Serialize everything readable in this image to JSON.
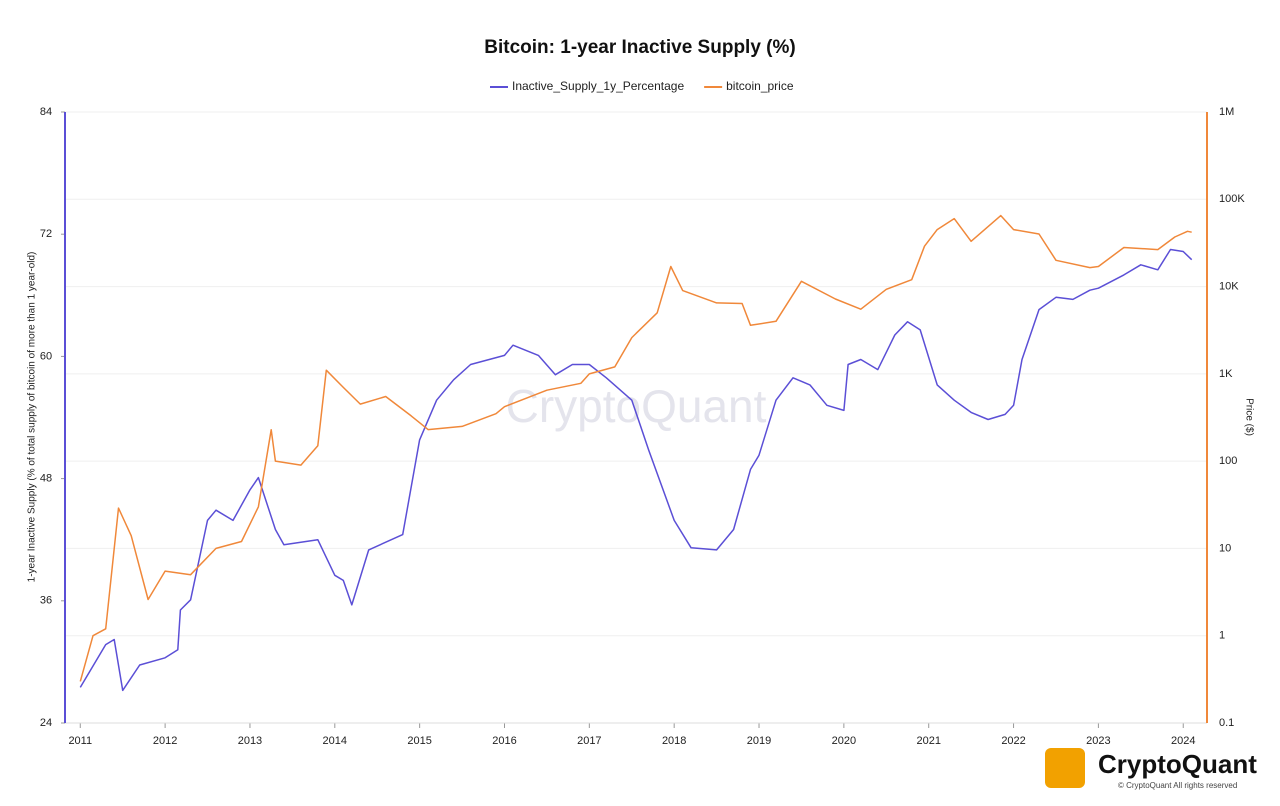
{
  "chart_data": {
    "type": "line",
    "title": "Bitcoin: 1-year Inactive Supply (%)",
    "ylabel": "1-year Inactive Supply (% of total supply of bitcoin of more than 1 year-old)",
    "y2label": "Price ($)",
    "watermark": "CryptoQuant",
    "footer": "CryptoQuant",
    "copyright": "© CryptoQuant All rights reserved",
    "xlim": [
      2010.82,
      2024.28
    ],
    "xticks": [
      2011,
      2012,
      2013,
      2014,
      2015,
      2016,
      2017,
      2018,
      2019,
      2020,
      2021,
      2022,
      2023,
      2024
    ],
    "ylim": [
      24,
      84
    ],
    "yticks": [
      24,
      36,
      48,
      60,
      72,
      84
    ],
    "y2lim": [
      0.1,
      1000000
    ],
    "y2log": true,
    "y2ticks": [
      0.1,
      1,
      10,
      100,
      {
        "value": 1000,
        "label": "1K"
      },
      {
        "value": 10000,
        "label": "10K"
      },
      {
        "value": 100000,
        "label": "100K"
      },
      {
        "value": 1000000,
        "label": "1M"
      }
    ],
    "grid": true,
    "legend": "top",
    "series": [
      {
        "name": "Inactive_Supply_1y_Percentage",
        "color": "#5b4fd6",
        "axis": "y",
        "x": [
          2011.0,
          2011.3,
          2011.4,
          2011.5,
          2011.7,
          2012.0,
          2012.15,
          2012.18,
          2012.3,
          2012.5,
          2012.6,
          2012.8,
          2013.0,
          2013.1,
          2013.3,
          2013.4,
          2013.8,
          2014.0,
          2014.1,
          2014.2,
          2014.4,
          2014.8,
          2015.0,
          2015.2,
          2015.4,
          2015.6,
          2016.0,
          2016.1,
          2016.4,
          2016.6,
          2016.8,
          2017.0,
          2017.2,
          2017.5,
          2017.7,
          2018.0,
          2018.2,
          2018.5,
          2018.7,
          2018.9,
          2019.0,
          2019.2,
          2019.4,
          2019.6,
          2019.8,
          2020.0,
          2020.05,
          2020.2,
          2020.4,
          2020.6,
          2020.75,
          2020.9,
          2021.1,
          2021.3,
          2021.5,
          2021.7,
          2021.9,
          2022.0,
          2022.1,
          2022.3,
          2022.5,
          2022.7,
          2022.9,
          2023.0,
          2023.3,
          2023.5,
          2023.7,
          2023.85,
          2024.0,
          2024.1
        ],
        "values": [
          27.5,
          31.7,
          32.2,
          27.2,
          29.7,
          30.4,
          31.2,
          35.1,
          36.1,
          43.9,
          44.9,
          43.9,
          46.9,
          48.1,
          43.0,
          41.5,
          42.0,
          38.5,
          38.0,
          35.6,
          41.0,
          42.5,
          51.8,
          55.7,
          57.7,
          59.2,
          60.1,
          61.1,
          60.1,
          58.2,
          59.2,
          59.2,
          57.9,
          55.7,
          50.8,
          43.9,
          41.2,
          41.0,
          43.0,
          48.9,
          50.3,
          55.7,
          57.9,
          57.2,
          55.2,
          54.7,
          59.2,
          59.7,
          58.7,
          62.1,
          63.4,
          62.6,
          57.2,
          55.7,
          54.5,
          53.8,
          54.3,
          55.2,
          59.7,
          64.6,
          65.8,
          65.6,
          66.5,
          66.7,
          68.0,
          69.0,
          68.5,
          70.5,
          70.3,
          69.5
        ]
      },
      {
        "name": "bitcoin_price",
        "color": "#f0883a",
        "axis": "y2",
        "x": [
          2011.0,
          2011.15,
          2011.3,
          2011.45,
          2011.6,
          2011.8,
          2012.0,
          2012.3,
          2012.6,
          2012.9,
          2013.1,
          2013.25,
          2013.3,
          2013.6,
          2013.8,
          2013.9,
          2014.1,
          2014.3,
          2014.6,
          2014.9,
          2015.1,
          2015.5,
          2015.9,
          2016.0,
          2016.5,
          2016.9,
          2017.0,
          2017.3,
          2017.5,
          2017.8,
          2017.96,
          2018.1,
          2018.5,
          2018.8,
          2018.9,
          2019.2,
          2019.5,
          2019.9,
          2020.2,
          2020.5,
          2020.8,
          2020.95,
          2021.1,
          2021.3,
          2021.5,
          2021.85,
          2022.0,
          2022.3,
          2022.5,
          2022.9,
          2023.0,
          2023.3,
          2023.7,
          2023.9,
          2024.05,
          2024.1
        ],
        "values": [
          0.3,
          1.0,
          1.2,
          29,
          14,
          2.6,
          5.5,
          5,
          10,
          12,
          30,
          229,
          100,
          90,
          150,
          1100,
          700,
          450,
          550,
          330,
          230,
          250,
          350,
          420,
          650,
          780,
          1000,
          1200,
          2600,
          5000,
          17000,
          9000,
          6500,
          6400,
          3600,
          4000,
          11500,
          7200,
          5500,
          9300,
          12000,
          29000,
          45000,
          60000,
          33000,
          65000,
          45000,
          40000,
          20000,
          16500,
          17000,
          28000,
          26500,
          37000,
          43000,
          42000
        ]
      }
    ]
  }
}
